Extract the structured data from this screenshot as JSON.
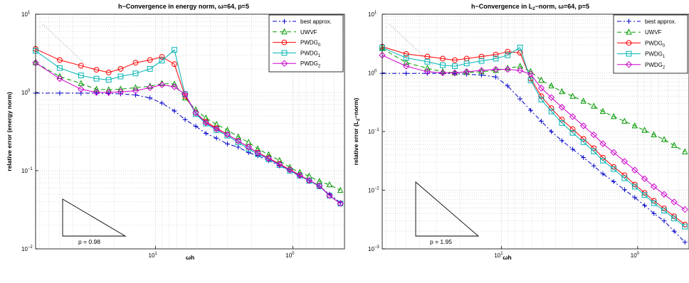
{
  "chart_data": [
    {
      "type": "line",
      "title": "h−Convergence in energy norm, ω=64, p=5",
      "xlabel": "ωh",
      "ylabel": "relative error (energy norm)",
      "xscale": "log-reversed",
      "yscale": "log",
      "xlim": [
        75,
        0.42
      ],
      "ylim": [
        0.01,
        10
      ],
      "grid": true,
      "legend_position": "top-right",
      "x_ticks": [
        {
          "label": "10",
          "sup": "1",
          "value": 10
        },
        {
          "label": "10",
          "sup": "0",
          "value": 1
        }
      ],
      "y_ticks": [
        {
          "label": "10",
          "sup": "1",
          "value": 10
        },
        {
          "label": "10",
          "sup": "0",
          "value": 1
        },
        {
          "label": "10",
          "sup": "−1",
          "value": 0.1
        },
        {
          "label": "10",
          "sup": "−2",
          "value": 0.01
        }
      ],
      "x": [
        75,
        50,
        35,
        27,
        22,
        18,
        14,
        11,
        9,
        7.3,
        6.1,
        5.1,
        4.3,
        3.6,
        3.0,
        2.5,
        2.1,
        1.8,
        1.5,
        1.25,
        1.05,
        0.89,
        0.76,
        0.64,
        0.54,
        0.45
      ],
      "series": [
        {
          "name": "best approx.",
          "sub": "",
          "color": "#0000cc",
          "dash": "6,3,2,3",
          "marker": "plus",
          "values": [
            0.98,
            0.98,
            0.98,
            0.98,
            0.97,
            0.96,
            0.93,
            0.85,
            0.73,
            0.58,
            0.45,
            0.37,
            0.3,
            0.26,
            0.22,
            0.2,
            0.17,
            0.155,
            0.135,
            0.115,
            0.1,
            0.085,
            0.075,
            0.063,
            0.05,
            0.039
          ]
        },
        {
          "name": "UWVF",
          "sub": "",
          "color": "#009900",
          "dash": "6,4",
          "marker": "triangle",
          "values": [
            2.4,
            1.6,
            1.3,
            1.1,
            1.08,
            1.1,
            1.15,
            1.2,
            1.3,
            1.28,
            0.85,
            0.6,
            0.47,
            0.39,
            0.33,
            0.27,
            0.23,
            0.19,
            0.16,
            0.135,
            0.11,
            0.095,
            0.085,
            0.073,
            0.066,
            0.056
          ]
        },
        {
          "name": "PWDG",
          "sub": "0",
          "color": "#ff0000",
          "dash": "",
          "marker": "circle",
          "values": [
            3.6,
            2.6,
            2.2,
            1.95,
            1.8,
            2.0,
            2.4,
            2.6,
            2.85,
            2.3,
            0.9,
            0.55,
            0.42,
            0.35,
            0.29,
            0.24,
            0.2,
            0.17,
            0.145,
            0.122,
            0.103,
            0.088,
            0.075,
            0.064,
            0.048,
            0.038
          ]
        },
        {
          "name": "PWDG",
          "sub": "1",
          "color": "#00b3b3",
          "dash": "",
          "marker": "square",
          "values": [
            3.4,
            2.05,
            1.65,
            1.5,
            1.45,
            1.6,
            1.75,
            2.0,
            2.55,
            3.5,
            0.95,
            0.53,
            0.4,
            0.33,
            0.28,
            0.23,
            0.19,
            0.163,
            0.14,
            0.118,
            0.1,
            0.086,
            0.074,
            0.063,
            0.048,
            0.038
          ]
        },
        {
          "name": "PWDG",
          "sub": "2",
          "color": "#cc00cc",
          "dash": "",
          "marker": "diamond",
          "values": [
            2.4,
            1.5,
            1.1,
            1.0,
            1.0,
            1.02,
            1.05,
            1.15,
            1.25,
            1.18,
            0.95,
            0.55,
            0.41,
            0.34,
            0.29,
            0.24,
            0.2,
            0.168,
            0.143,
            0.12,
            0.102,
            0.087,
            0.075,
            0.064,
            0.048,
            0.038
          ]
        }
      ],
      "slope_label": "p = 0.98"
    },
    {
      "type": "line",
      "title": "h−Convergence in L2−norm, ω=64, p=5",
      "xlabel": "ωh",
      "ylabel": "relative error (L2−norm)",
      "xscale": "log-reversed",
      "yscale": "log",
      "xlim": [
        75,
        0.42
      ],
      "ylim": [
        0.001,
        10
      ],
      "grid": true,
      "legend_position": "top-right",
      "x_ticks": [
        {
          "label": "10",
          "sup": "1",
          "value": 10
        },
        {
          "label": "10",
          "sup": "0",
          "value": 1
        }
      ],
      "y_ticks": [
        {
          "label": "10",
          "sup": "1",
          "value": 10
        },
        {
          "label": "10",
          "sup": "0",
          "value": 1
        },
        {
          "label": "10",
          "sup": "−1",
          "value": 0.1
        },
        {
          "label": "10",
          "sup": "−2",
          "value": 0.01
        },
        {
          "label": "10",
          "sup": "−3",
          "value": 0.001
        }
      ],
      "x": [
        75,
        50,
        35,
        27,
        22,
        18,
        14,
        11,
        9,
        7.3,
        6.1,
        5.1,
        4.3,
        3.6,
        3.0,
        2.5,
        2.1,
        1.8,
        1.5,
        1.25,
        1.05,
        0.89,
        0.76,
        0.64,
        0.54,
        0.45
      ],
      "series": [
        {
          "name": "best approx.",
          "sub": "",
          "color": "#0000cc",
          "dash": "6,3,2,3",
          "marker": "plus",
          "values": [
            0.98,
            0.98,
            0.98,
            0.98,
            0.97,
            0.95,
            0.92,
            0.85,
            0.6,
            0.36,
            0.23,
            0.15,
            0.1,
            0.07,
            0.05,
            0.036,
            0.026,
            0.019,
            0.014,
            0.0102,
            0.0075,
            0.0055,
            0.004,
            0.003,
            0.002,
            0.0013
          ]
        },
        {
          "name": "UWVF",
          "sub": "",
          "color": "#009900",
          "dash": "6,4",
          "marker": "triangle",
          "values": [
            2.6,
            1.5,
            1.2,
            1.05,
            1.0,
            1.02,
            1.05,
            1.1,
            1.2,
            1.3,
            1.05,
            0.75,
            0.6,
            0.48,
            0.4,
            0.33,
            0.27,
            0.22,
            0.18,
            0.15,
            0.125,
            0.105,
            0.088,
            0.073,
            0.058,
            0.045
          ]
        },
        {
          "name": "PWDG",
          "sub": "0",
          "color": "#ff0000",
          "dash": "",
          "marker": "circle",
          "values": [
            2.8,
            2.1,
            1.9,
            1.75,
            1.65,
            1.75,
            1.9,
            2.05,
            2.3,
            2.2,
            0.8,
            0.4,
            0.25,
            0.16,
            0.11,
            0.075,
            0.052,
            0.036,
            0.025,
            0.018,
            0.0125,
            0.009,
            0.0066,
            0.0049,
            0.0036,
            0.0026
          ]
        },
        {
          "name": "PWDG",
          "sub": "1",
          "color": "#00b3b3",
          "dash": "",
          "marker": "square",
          "values": [
            2.7,
            1.8,
            1.55,
            1.35,
            1.3,
            1.45,
            1.6,
            1.75,
            2.0,
            2.7,
            0.75,
            0.35,
            0.22,
            0.14,
            0.095,
            0.066,
            0.046,
            0.032,
            0.023,
            0.016,
            0.0115,
            0.0083,
            0.006,
            0.0045,
            0.0033,
            0.0024
          ]
        },
        {
          "name": "PWDG",
          "sub": "2",
          "color": "#cc00cc",
          "dash": "",
          "marker": "diamond",
          "values": [
            2.0,
            1.3,
            1.05,
            1.0,
            1.0,
            1.05,
            1.1,
            1.15,
            1.15,
            1.1,
            0.95,
            0.55,
            0.38,
            0.26,
            0.18,
            0.125,
            0.088,
            0.062,
            0.044,
            0.031,
            0.022,
            0.0157,
            0.0115,
            0.0085,
            0.0063,
            0.0047
          ]
        }
      ],
      "slope_label": "p = 1.95"
    }
  ]
}
